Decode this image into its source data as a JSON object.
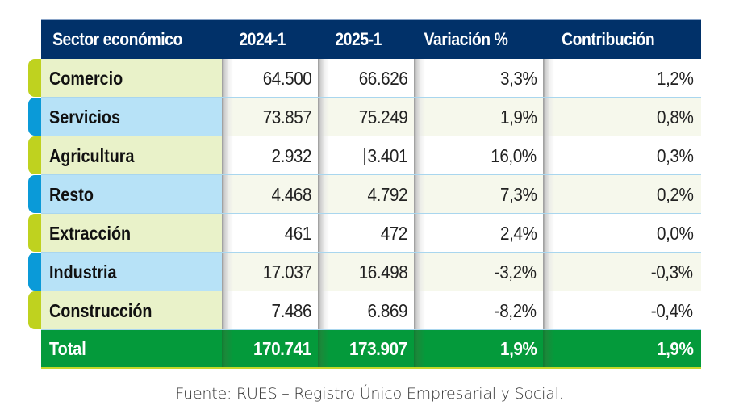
{
  "table": {
    "headers": [
      "Sector económico",
      "2024-1",
      "2025-1",
      "Variación %",
      "Contribución"
    ],
    "rows": [
      {
        "sector": "Comercio",
        "y2024": "64.500",
        "y2025": "66.626",
        "variacion": "3,3%",
        "contribucion": "1,2%",
        "tab_color": "#bfd21f"
      },
      {
        "sector": "Servicios",
        "y2024": "73.857",
        "y2025": "75.249",
        "variacion": "1,9%",
        "contribucion": "0,8%",
        "tab_color": "#0a9ad8"
      },
      {
        "sector": "Agricultura",
        "y2024": "2.932",
        "y2025": "3.401",
        "variacion": "16,0%",
        "contribucion": "0,3%",
        "tab_color": "#bfd21f"
      },
      {
        "sector": "Resto",
        "y2024": "4.468",
        "y2025": "4.792",
        "variacion": "7,3%",
        "contribucion": "0,2%",
        "tab_color": "#0a9ad8"
      },
      {
        "sector": "Extracción",
        "y2024": "461",
        "y2025": "472",
        "variacion": "2,4%",
        "contribucion": "0,0%",
        "tab_color": "#bfd21f"
      },
      {
        "sector": "Industria",
        "y2024": "17.037",
        "y2025": "16.498",
        "variacion": "-3,2%",
        "contribucion": "-0,3%",
        "tab_color": "#0a9ad8"
      },
      {
        "sector": "Construcción",
        "y2024": "7.486",
        "y2025": "6.869",
        "variacion": "-8,2%",
        "contribucion": "-0,4%",
        "tab_color": "#bfd21f"
      }
    ],
    "total": {
      "label": "Total",
      "y2024": "170.741",
      "y2025": "173.907",
      "variacion": "1,9%",
      "contribucion": "1,9%"
    }
  },
  "source": "Fuente: RUES – Registro Único Empresarial y Social.",
  "colors": {
    "header": "#013169",
    "total": "#049a3b",
    "green_tab": "#bfd21f",
    "blue_tab": "#0a9ad8"
  }
}
